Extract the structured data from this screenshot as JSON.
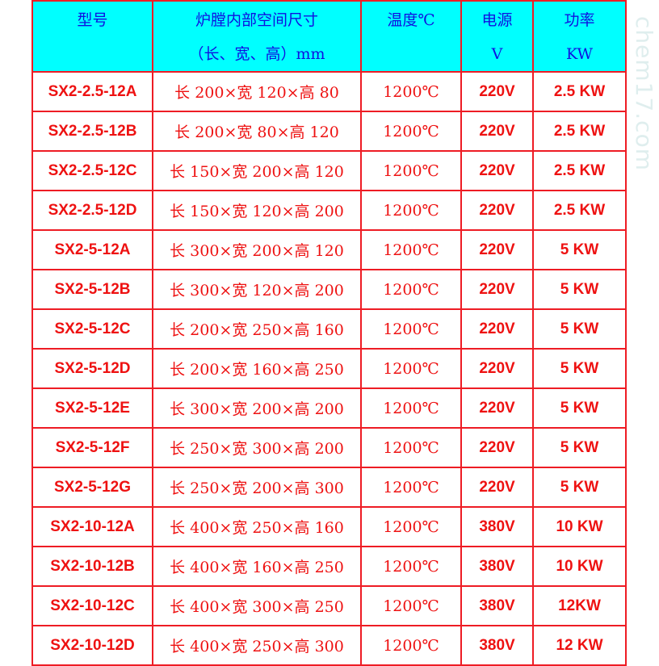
{
  "watermark": "chem17.com",
  "headers": [
    {
      "line1": "型号",
      "line2": ""
    },
    {
      "line1": "炉膛内部空间尺寸",
      "line2": "（长、宽、高）mm"
    },
    {
      "line1": "温度℃",
      "line2": ""
    },
    {
      "line1": "电源",
      "line2": "V"
    },
    {
      "line1": "功率",
      "line2": "KW"
    }
  ],
  "rows": [
    [
      "SX2-2.5-12A",
      "长 200×宽 120×高 80",
      "1200℃",
      "220V",
      "2.5 KW"
    ],
    [
      "SX2-2.5-12B",
      "长 200×宽 80×高 120",
      "1200℃",
      "220V",
      "2.5 KW"
    ],
    [
      "SX2-2.5-12C",
      "长 150×宽 200×高 120",
      "1200℃",
      "220V",
      "2.5 KW"
    ],
    [
      "SX2-2.5-12D",
      "长 150×宽 120×高 200",
      "1200℃",
      "220V",
      "2.5 KW"
    ],
    [
      "SX2-5-12A",
      "长 300×宽 200×高 120",
      "1200℃",
      "220V",
      "5 KW"
    ],
    [
      "SX2-5-12B",
      "长 300×宽 120×高 200",
      "1200℃",
      "220V",
      "5 KW"
    ],
    [
      "SX2-5-12C",
      "长 200×宽 250×高 160",
      "1200℃",
      "220V",
      "5 KW"
    ],
    [
      "SX2-5-12D",
      "长 200×宽 160×高 250",
      "1200℃",
      "220V",
      "5 KW"
    ],
    [
      "SX2-5-12E",
      "长 300×宽 200×高 200",
      "1200℃",
      "220V",
      "5 KW"
    ],
    [
      "SX2-5-12F",
      "长 250×宽 300×高 200",
      "1200℃",
      "220V",
      "5 KW"
    ],
    [
      "SX2-5-12G",
      "长 250×宽 200×高 300",
      "1200℃",
      "220V",
      "5 KW"
    ],
    [
      "SX2-10-12A",
      "长 400×宽 250×高 160",
      "1200℃",
      "380V",
      "10 KW"
    ],
    [
      "SX2-10-12B",
      "长 400×宽 160×高 250",
      "1200℃",
      "380V",
      "10 KW"
    ],
    [
      "SX2-10-12C",
      "长 400×宽 300×高 250",
      "1200℃",
      "380V",
      "12KW"
    ],
    [
      "SX2-10-12D",
      "长 400×宽 250×高 300",
      "1200℃",
      "380V",
      "12 KW"
    ]
  ]
}
